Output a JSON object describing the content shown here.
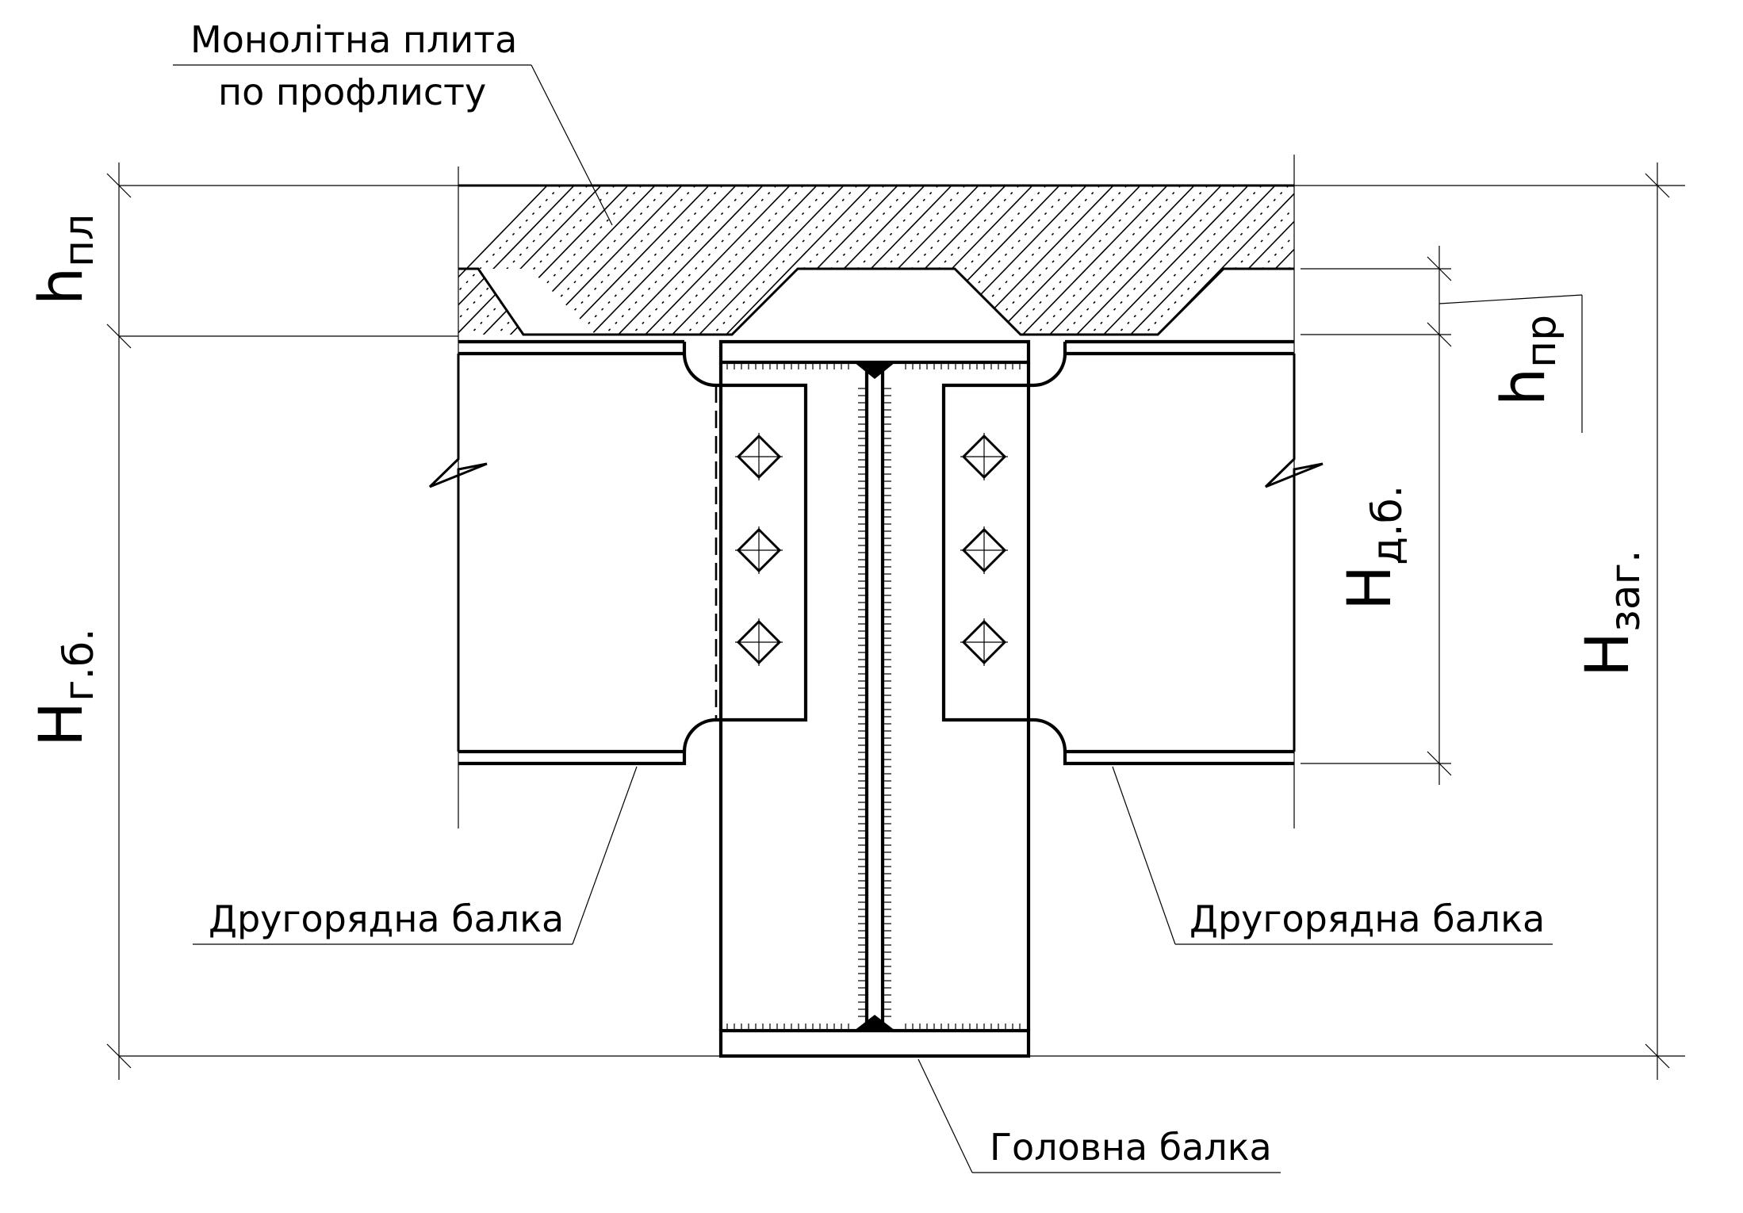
{
  "labels": {
    "slab_line1": "Монолітна плита",
    "slab_line2": "по профлисту",
    "secondary_left": "Другорядна балка",
    "secondary_right": "Другорядна балка",
    "main_beam": "Головна балка"
  },
  "dimensions": {
    "h_pl": {
      "main": "h",
      "sub": "пл"
    },
    "h_pr": {
      "main": "h",
      "sub": "пр"
    },
    "H_db": {
      "main": "H",
      "sub": "д.б."
    },
    "H_gb": {
      "main": "H",
      "sub": "г.б."
    },
    "H_zag": {
      "main": "H",
      "sub": "заг."
    }
  }
}
